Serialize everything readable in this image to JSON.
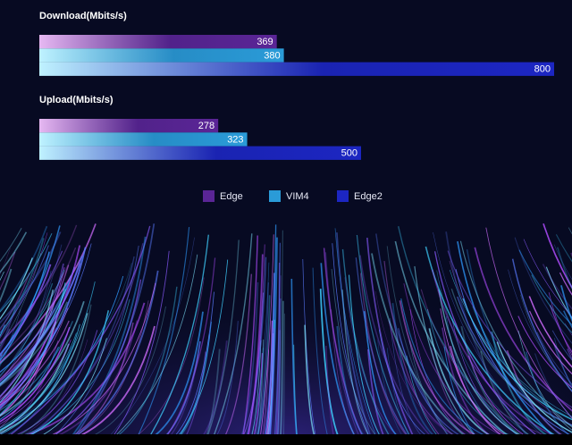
{
  "chart_data": [
    {
      "type": "bar",
      "title": "Download(Mbits/s)",
      "series": [
        {
          "name": "Edge",
          "color": "#5a2596",
          "values": [
            369
          ]
        },
        {
          "name": "VIM4",
          "color": "#2a9bd8",
          "values": [
            380
          ]
        },
        {
          "name": "Edge2",
          "color": "#1c26c2",
          "values": [
            800
          ]
        }
      ]
    },
    {
      "type": "bar",
      "title": "Upload(Mbits/s)",
      "series": [
        {
          "name": "Edge",
          "color": "#5a2596",
          "values": [
            278
          ]
        },
        {
          "name": "VIM4",
          "color": "#2a9bd8",
          "values": [
            323
          ]
        },
        {
          "name": "Edge2",
          "color": "#1c26c2",
          "values": [
            500
          ]
        }
      ]
    }
  ]
}
